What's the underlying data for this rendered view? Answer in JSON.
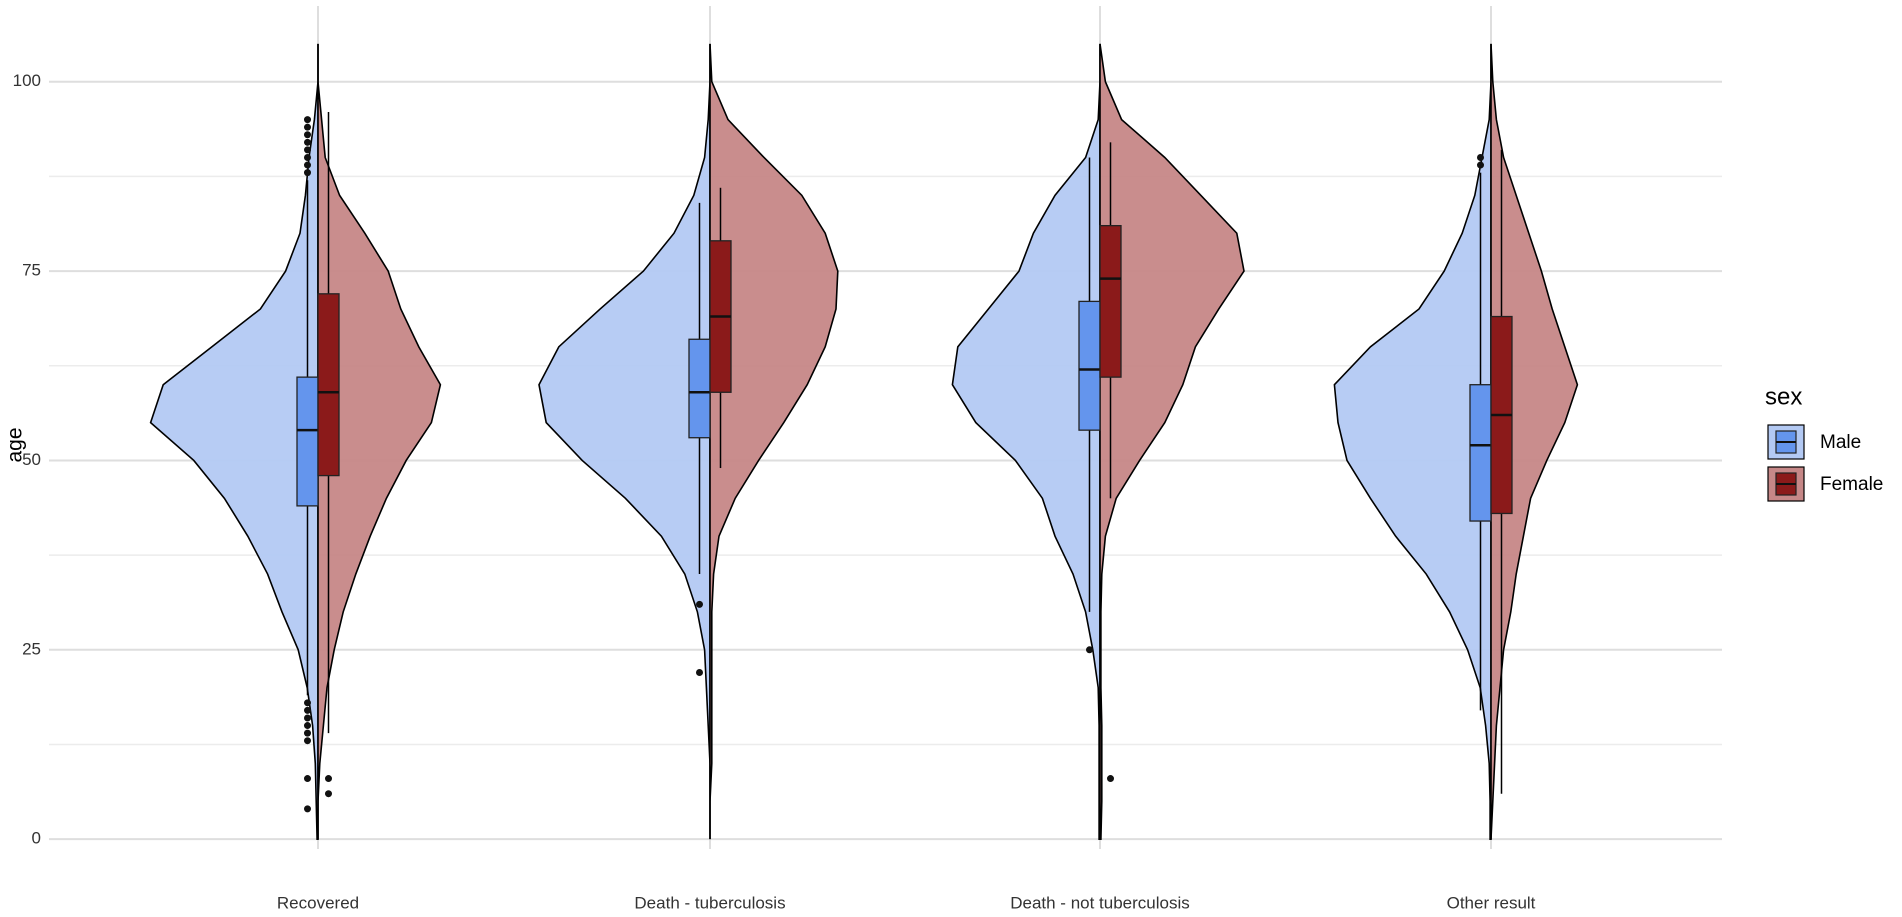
{
  "chart_data": {
    "type": "split_violin",
    "y_label": "age",
    "categories": [
      "Recovered",
      "Death - tuberculosis",
      "Death - not tuberculosis",
      "Other result"
    ],
    "ylim": [
      -1.3,
      110
    ],
    "yticks": [
      0,
      25,
      50,
      75,
      100
    ],
    "minor_yticks": [
      12.5,
      37.5,
      62.5,
      87.5
    ],
    "grid": true,
    "legend_title": "sex",
    "legend_position": "right",
    "violin_y": [
      0,
      5,
      10,
      15,
      20,
      25,
      30,
      35,
      40,
      45,
      50,
      55,
      60,
      65,
      70,
      75,
      80,
      85,
      90,
      95,
      100,
      105
    ],
    "series": [
      {
        "name": "Male",
        "color": "#6495ed",
        "violin_color": "#b3c9f3",
        "density": [
          [
            0.005,
            0.01,
            0.015,
            0.03,
            0.06,
            0.11,
            0.2,
            0.28,
            0.39,
            0.52,
            0.69,
            0.93,
            0.86,
            0.59,
            0.32,
            0.18,
            0.1,
            0.07,
            0.05,
            0.02,
            0,
            0
          ],
          [
            0,
            0,
            0,
            0.01,
            0.02,
            0.03,
            0.07,
            0.14,
            0.27,
            0.47,
            0.71,
            0.91,
            0.95,
            0.84,
            0.61,
            0.37,
            0.2,
            0.09,
            0.03,
            0.01,
            0,
            0
          ],
          [
            0.005,
            0.005,
            0.005,
            0.005,
            0.01,
            0.04,
            0.08,
            0.15,
            0.25,
            0.32,
            0.47,
            0.69,
            0.82,
            0.79,
            0.62,
            0.45,
            0.37,
            0.25,
            0.08,
            0.01,
            0,
            0
          ],
          [
            0.005,
            0.005,
            0.01,
            0.03,
            0.06,
            0.13,
            0.23,
            0.36,
            0.53,
            0.67,
            0.8,
            0.85,
            0.87,
            0.67,
            0.4,
            0.26,
            0.16,
            0.09,
            0.05,
            0.01,
            0,
            0
          ]
        ],
        "boxes": [
          {
            "low": 19,
            "q1": 44,
            "median": 54,
            "q3": 61,
            "high": 87,
            "outliers": [
              4,
              8,
              13,
              14,
              15,
              16,
              17,
              18,
              88,
              89,
              90,
              91,
              92,
              93,
              94,
              95
            ]
          },
          {
            "low": 35,
            "q1": 53,
            "median": 59,
            "q3": 66,
            "high": 84,
            "outliers": [
              22,
              31
            ]
          },
          {
            "low": 30,
            "q1": 54,
            "median": 62,
            "q3": 71,
            "high": 90,
            "outliers": [
              25
            ]
          },
          {
            "low": 17,
            "q1": 42,
            "median": 52,
            "q3": 60,
            "high": 88,
            "outliers": [
              89,
              90
            ]
          }
        ]
      },
      {
        "name": "Female",
        "color": "#8b1a1a",
        "violin_color": "#c68787",
        "density": [
          [
            0,
            0,
            0.01,
            0.03,
            0.05,
            0.09,
            0.14,
            0.21,
            0.29,
            0.38,
            0.49,
            0.63,
            0.68,
            0.56,
            0.46,
            0.39,
            0.26,
            0.12,
            0.04,
            0.02,
            0,
            0
          ],
          [
            0,
            0,
            0.01,
            0.01,
            0.01,
            0.01,
            0.01,
            0.02,
            0.05,
            0.14,
            0.27,
            0.41,
            0.54,
            0.64,
            0.7,
            0.71,
            0.64,
            0.51,
            0.3,
            0.1,
            0.01,
            0
          ],
          [
            0.005,
            0.01,
            0.01,
            0.01,
            0.005,
            0.005,
            0.005,
            0.01,
            0.03,
            0.09,
            0.22,
            0.36,
            0.46,
            0.53,
            0.66,
            0.8,
            0.76,
            0.56,
            0.36,
            0.12,
            0.03,
            0
          ],
          [
            0,
            0.01,
            0.02,
            0.03,
            0.05,
            0.07,
            0.11,
            0.14,
            0.18,
            0.22,
            0.31,
            0.41,
            0.48,
            0.41,
            0.34,
            0.28,
            0.21,
            0.14,
            0.07,
            0.03,
            0.01,
            0
          ]
        ],
        "boxes": [
          {
            "low": 14,
            "q1": 48,
            "median": 59,
            "q3": 72,
            "high": 96,
            "outliers": [
              6,
              8
            ]
          },
          {
            "low": 49,
            "q1": 59,
            "median": 69,
            "q3": 79,
            "high": 86,
            "outliers": []
          },
          {
            "low": 45,
            "q1": 61,
            "median": 74,
            "q3": 81,
            "high": 92,
            "outliers": [
              8
            ]
          },
          {
            "low": 6,
            "q1": 43,
            "median": 56,
            "q3": 69,
            "high": 91,
            "outliers": []
          }
        ]
      }
    ]
  }
}
